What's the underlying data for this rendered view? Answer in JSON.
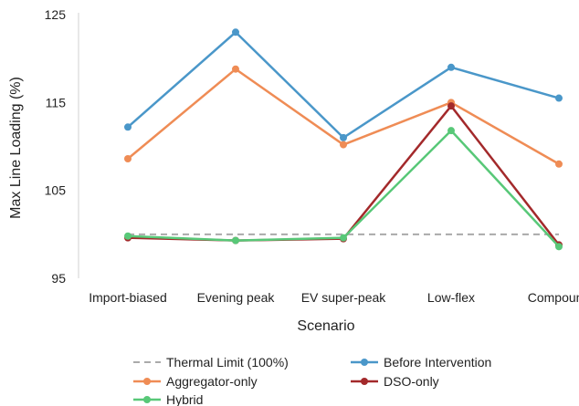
{
  "chart_data": {
    "type": "line",
    "categories": [
      "Import-biased",
      "Evening peak",
      "EV super-peak",
      "Low-flex",
      "Compound"
    ],
    "xlabel": "Scenario",
    "ylabel": "Max Line Loading (%)",
    "ylim": [
      95,
      125
    ],
    "yticks": [
      "95",
      "105",
      "115",
      "125"
    ],
    "grid": false,
    "legend_position": "bottom",
    "series": [
      {
        "name": "Thermal Limit (100%)",
        "values": [
          100,
          100,
          100,
          100,
          100
        ],
        "color": "#aaaaaa",
        "style": "dashed"
      },
      {
        "name": "Before Intervention",
        "values": [
          112.2,
          123.0,
          111.0,
          119.0,
          115.5
        ],
        "color": "#4a97c9",
        "style": "solid"
      },
      {
        "name": "Aggregator-only",
        "values": [
          108.6,
          118.8,
          110.2,
          115.0,
          108.0
        ],
        "color": "#ef8c55",
        "style": "solid"
      },
      {
        "name": "DSO-only",
        "values": [
          99.6,
          99.3,
          99.5,
          114.6,
          98.8
        ],
        "color": "#a3292b",
        "style": "solid"
      },
      {
        "name": "Hybrid",
        "values": [
          99.8,
          99.3,
          99.6,
          111.8,
          98.6
        ],
        "color": "#58c878",
        "style": "solid"
      }
    ]
  }
}
